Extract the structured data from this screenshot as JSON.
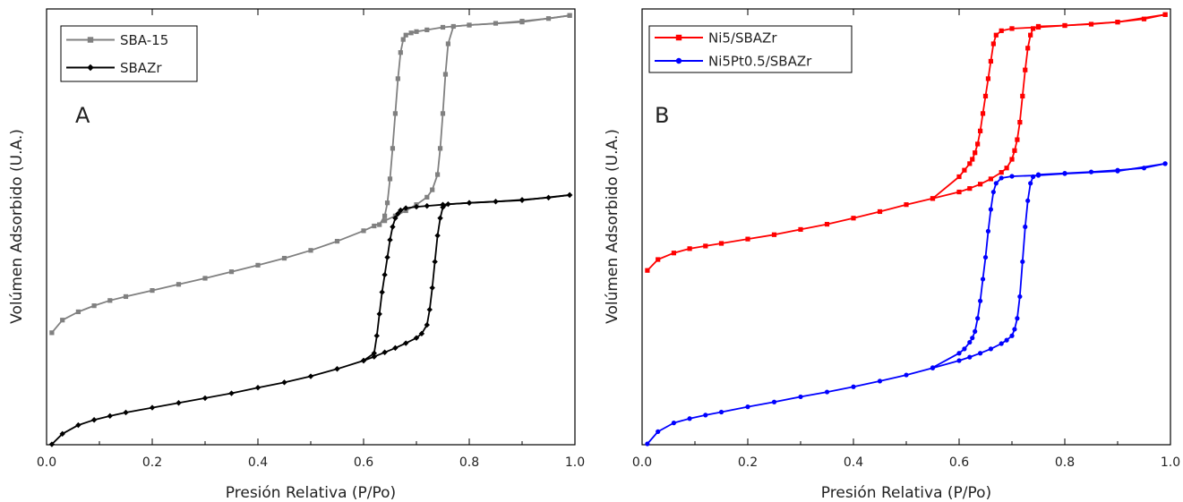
{
  "chart_data": [
    {
      "type": "line",
      "panel_label": "A",
      "xlabel": "Presión Relativa (P/Po)",
      "ylabel": "Volúmen Adsorbido (U.A.)",
      "xlim": [
        0.0,
        1.0
      ],
      "ylim": [
        0,
        1
      ],
      "xticks": [
        "0.0",
        "0.2",
        "0.4",
        "0.6",
        "0.8",
        "1.0"
      ],
      "y_tick_labels_shown": false,
      "grid": false,
      "legend_position": "top-left",
      "series": [
        {
          "name": "SBA-15",
          "color": "#808080",
          "marker": "square",
          "adsorption": {
            "x": [
              0.01,
              0.03,
              0.06,
              0.09,
              0.12,
              0.15,
              0.2,
              0.25,
              0.3,
              0.35,
              0.4,
              0.45,
              0.5,
              0.55,
              0.6,
              0.62,
              0.64,
              0.66,
              0.68,
              0.7,
              0.72,
              0.73,
              0.74,
              0.745,
              0.75,
              0.755,
              0.76,
              0.77,
              0.8,
              0.85,
              0.9,
              0.95,
              0.99
            ],
            "y": [
              0.257,
              0.286,
              0.305,
              0.319,
              0.331,
              0.34,
              0.354,
              0.368,
              0.382,
              0.397,
              0.412,
              0.428,
              0.446,
              0.467,
              0.491,
              0.502,
              0.514,
              0.525,
              0.537,
              0.551,
              0.568,
              0.585,
              0.62,
              0.68,
              0.76,
              0.85,
              0.92,
              0.96,
              0.963,
              0.967,
              0.972,
              0.978,
              0.985
            ]
          },
          "desorption": {
            "x": [
              0.99,
              0.9,
              0.8,
              0.75,
              0.72,
              0.7,
              0.69,
              0.68,
              0.675,
              0.67,
              0.665,
              0.66,
              0.655,
              0.65,
              0.645,
              0.64,
              0.63
            ],
            "y": [
              0.985,
              0.97,
              0.963,
              0.958,
              0.952,
              0.948,
              0.945,
              0.94,
              0.93,
              0.9,
              0.84,
              0.76,
              0.68,
              0.61,
              0.555,
              0.525,
              0.505
            ]
          }
        },
        {
          "name": "SBAZr",
          "color": "#000000",
          "marker": "diamond",
          "adsorption": {
            "x": [
              0.01,
              0.03,
              0.06,
              0.09,
              0.12,
              0.15,
              0.2,
              0.25,
              0.3,
              0.35,
              0.4,
              0.45,
              0.5,
              0.55,
              0.6,
              0.62,
              0.64,
              0.66,
              0.68,
              0.7,
              0.71,
              0.72,
              0.725,
              0.73,
              0.735,
              0.74,
              0.745,
              0.75,
              0.76,
              0.8,
              0.85,
              0.9,
              0.95,
              0.99
            ],
            "y": [
              0.001,
              0.025,
              0.045,
              0.057,
              0.066,
              0.074,
              0.085,
              0.096,
              0.107,
              0.118,
              0.131,
              0.143,
              0.157,
              0.174,
              0.193,
              0.202,
              0.212,
              0.222,
              0.233,
              0.245,
              0.255,
              0.275,
              0.31,
              0.36,
              0.42,
              0.48,
              0.52,
              0.545,
              0.552,
              0.555,
              0.558,
              0.562,
              0.567,
              0.573
            ]
          },
          "desorption": {
            "x": [
              0.99,
              0.9,
              0.8,
              0.75,
              0.72,
              0.7,
              0.68,
              0.67,
              0.665,
              0.66,
              0.655,
              0.65,
              0.645,
              0.64,
              0.635,
              0.63,
              0.625,
              0.62,
              0.6
            ],
            "y": [
              0.573,
              0.561,
              0.555,
              0.551,
              0.548,
              0.546,
              0.543,
              0.538,
              0.53,
              0.52,
              0.5,
              0.47,
              0.43,
              0.39,
              0.35,
              0.3,
              0.25,
              0.21,
              0.193
            ]
          }
        }
      ]
    },
    {
      "type": "line",
      "panel_label": "B",
      "xlabel": "Presión Relativa (P/Po)",
      "ylabel": "Volúmen Adsorbido (U.A.)",
      "xlim": [
        0.0,
        1.0
      ],
      "ylim": [
        0,
        1
      ],
      "xticks": [
        "0.0",
        "0.2",
        "0.4",
        "0.6",
        "0.8",
        "1.0"
      ],
      "y_tick_labels_shown": false,
      "grid": false,
      "legend_position": "top-left",
      "series": [
        {
          "name": "Ni5/SBAZr",
          "color": "#ff0000",
          "marker": "square",
          "adsorption": {
            "x": [
              0.01,
              0.03,
              0.06,
              0.09,
              0.12,
              0.15,
              0.2,
              0.25,
              0.3,
              0.35,
              0.4,
              0.45,
              0.5,
              0.55,
              0.6,
              0.62,
              0.64,
              0.66,
              0.68,
              0.69,
              0.7,
              0.705,
              0.71,
              0.715,
              0.72,
              0.725,
              0.73,
              0.735,
              0.74,
              0.75,
              0.8,
              0.85,
              0.9,
              0.95,
              0.99
            ],
            "y": [
              0.4,
              0.425,
              0.44,
              0.45,
              0.456,
              0.462,
              0.472,
              0.482,
              0.494,
              0.506,
              0.52,
              0.535,
              0.551,
              0.565,
              0.58,
              0.588,
              0.598,
              0.61,
              0.625,
              0.635,
              0.655,
              0.675,
              0.7,
              0.74,
              0.8,
              0.86,
              0.91,
              0.94,
              0.955,
              0.96,
              0.962,
              0.965,
              0.97,
              0.977,
              0.987
            ]
          },
          "desorption": {
            "x": [
              0.99,
              0.9,
              0.8,
              0.75,
              0.7,
              0.68,
              0.67,
              0.665,
              0.66,
              0.655,
              0.65,
              0.645,
              0.64,
              0.635,
              0.63,
              0.625,
              0.62,
              0.61,
              0.6,
              0.55
            ],
            "y": [
              0.987,
              0.97,
              0.962,
              0.958,
              0.955,
              0.95,
              0.94,
              0.92,
              0.88,
              0.84,
              0.8,
              0.76,
              0.72,
              0.69,
              0.67,
              0.655,
              0.645,
              0.63,
              0.615,
              0.565
            ]
          }
        },
        {
          "name": "Ni5Pt0.5/SBAZr",
          "color": "#0000ff",
          "marker": "circle",
          "adsorption": {
            "x": [
              0.01,
              0.03,
              0.06,
              0.09,
              0.12,
              0.15,
              0.2,
              0.25,
              0.3,
              0.35,
              0.4,
              0.45,
              0.5,
              0.55,
              0.6,
              0.62,
              0.64,
              0.66,
              0.68,
              0.69,
              0.7,
              0.705,
              0.71,
              0.715,
              0.72,
              0.725,
              0.73,
              0.735,
              0.74,
              0.75,
              0.8,
              0.85,
              0.9,
              0.95,
              0.99
            ],
            "y": [
              0.002,
              0.03,
              0.05,
              0.06,
              0.068,
              0.075,
              0.087,
              0.098,
              0.11,
              0.121,
              0.133,
              0.146,
              0.16,
              0.176,
              0.193,
              0.201,
              0.21,
              0.22,
              0.232,
              0.24,
              0.25,
              0.265,
              0.29,
              0.34,
              0.42,
              0.5,
              0.56,
              0.6,
              0.615,
              0.62,
              0.623,
              0.626,
              0.63,
              0.635,
              0.645
            ]
          },
          "desorption": {
            "x": [
              0.99,
              0.9,
              0.8,
              0.75,
              0.7,
              0.68,
              0.67,
              0.665,
              0.66,
              0.655,
              0.65,
              0.645,
              0.64,
              0.635,
              0.63,
              0.625,
              0.62,
              0.61,
              0.6,
              0.55
            ],
            "y": [
              0.645,
              0.628,
              0.622,
              0.618,
              0.616,
              0.612,
              0.6,
              0.58,
              0.54,
              0.49,
              0.43,
              0.38,
              0.33,
              0.29,
              0.26,
              0.245,
              0.235,
              0.22,
              0.21,
              0.177
            ]
          }
        }
      ]
    }
  ]
}
